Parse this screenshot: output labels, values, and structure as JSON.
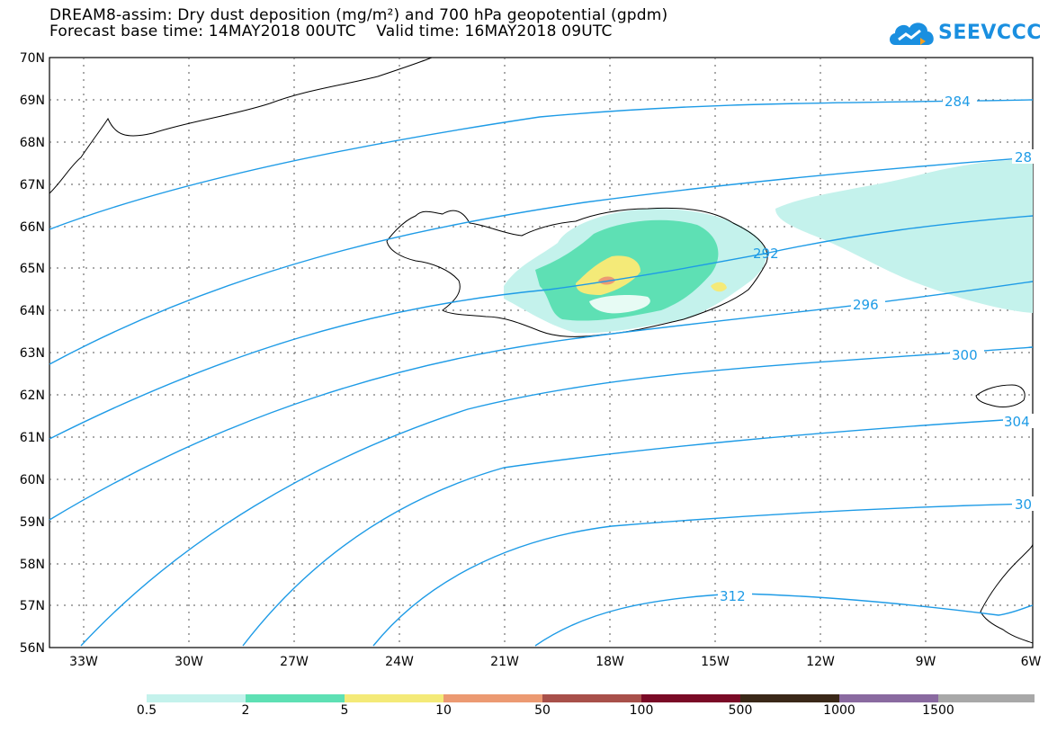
{
  "title": {
    "line1": "DREAM8-assim: Dry dust deposition (mg/m²) and 700 hPa geopotential (gpdm)",
    "line2": "Forecast base time: 14MAY2018 00UTC    Valid time: 16MAY2018 09UTC"
  },
  "logo": {
    "text": "SEEVCCC",
    "icon": "cloud-icon",
    "color": "#1a8fe0"
  },
  "map": {
    "lat_labels": [
      "70N",
      "69N",
      "68N",
      "67N",
      "66N",
      "65N",
      "64N",
      "63N",
      "62N",
      "61N",
      "60N",
      "59N",
      "58N",
      "57N",
      "56N"
    ],
    "lon_labels": [
      "33W",
      "30W",
      "27W",
      "24W",
      "21W",
      "18W",
      "15W",
      "12W",
      "9W",
      "6W"
    ],
    "contour_labels": [
      "284",
      "28",
      "292",
      "296",
      "300",
      "304",
      "30",
      "312"
    ],
    "contour_color": "#1e9be6"
  },
  "colorbar": {
    "labels": [
      "0.5",
      "2",
      "5",
      "10",
      "50",
      "100",
      "500",
      "1000",
      "1500"
    ],
    "colors": [
      "#c4f2ec",
      "#5ee0b4",
      "#f4ea78",
      "#ec9a72",
      "#a8504a",
      "#7a0a26",
      "#3a2818",
      "#8a6aa0",
      "#a8a8a8"
    ]
  }
}
